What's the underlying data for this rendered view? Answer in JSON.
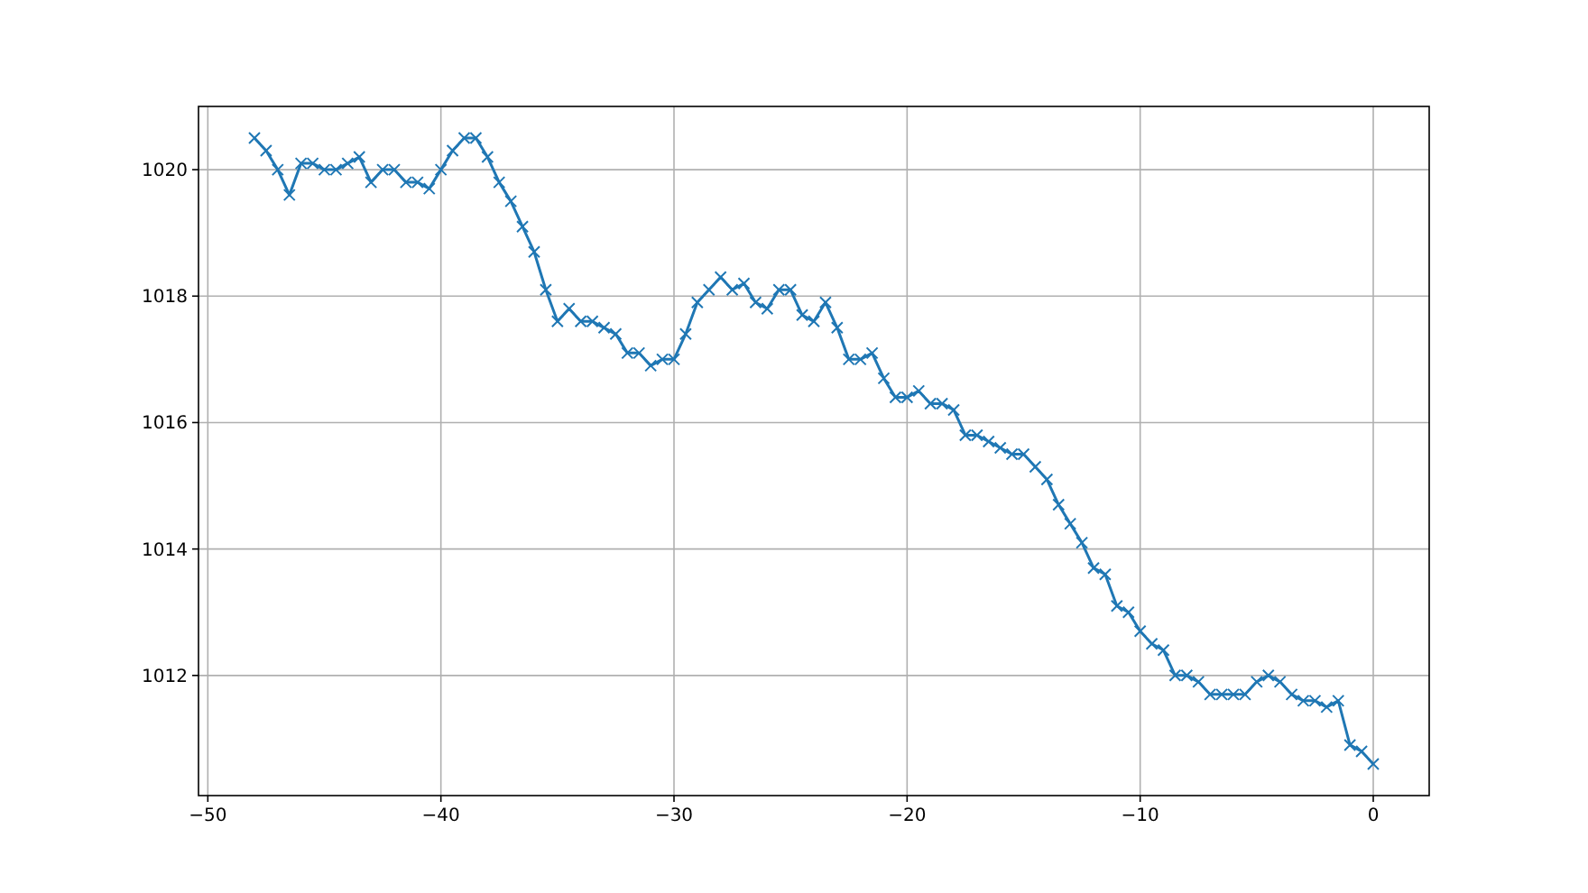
{
  "chart_data": {
    "type": "line",
    "marker": "cross",
    "grid": true,
    "x": [
      -48,
      -47.5,
      -47,
      -46.5,
      -46,
      -45.5,
      -45,
      -44.5,
      -44,
      -43.5,
      -43,
      -42.5,
      -42,
      -41.5,
      -41,
      -40.5,
      -40,
      -39.5,
      -39,
      -38.5,
      -38,
      -37.5,
      -37,
      -36.5,
      -36,
      -35.5,
      -35,
      -34.5,
      -34,
      -33.5,
      -33,
      -32.5,
      -32,
      -31.5,
      -31,
      -30.5,
      -30,
      -29.5,
      -29,
      -28.5,
      -28,
      -27.5,
      -27,
      -26.5,
      -26,
      -25.5,
      -25,
      -24.5,
      -24,
      -23.5,
      -23,
      -22.5,
      -22,
      -21.5,
      -21,
      -20.5,
      -20,
      -19.5,
      -19,
      -18.5,
      -18,
      -17.5,
      -17,
      -16.5,
      -16,
      -15.5,
      -15,
      -14.5,
      -14,
      -13.5,
      -13,
      -12.5,
      -12,
      -11.5,
      -11,
      -10.5,
      -10,
      -9.5,
      -9,
      -8.5,
      -8,
      -7.5,
      -7,
      -6.5,
      -6,
      -5.5,
      -5,
      -4.5,
      -4,
      -3.5,
      -3,
      -2.5,
      -2,
      -1.5,
      -1,
      -0.5,
      0
    ],
    "series": [
      {
        "color": "#1f77b4",
        "values": [
          1020.5,
          1020.3,
          1020.0,
          1019.6,
          1020.1,
          1020.1,
          1020.0,
          1020.0,
          1020.1,
          1020.2,
          1019.8,
          1020.0,
          1020.0,
          1019.8,
          1019.8,
          1019.7,
          1020.0,
          1020.3,
          1020.5,
          1020.5,
          1020.2,
          1019.8,
          1019.5,
          1019.1,
          1018.7,
          1018.1,
          1017.6,
          1017.8,
          1017.6,
          1017.6,
          1017.5,
          1017.4,
          1017.1,
          1017.1,
          1016.9,
          1017.0,
          1017.0,
          1017.4,
          1017.9,
          1018.1,
          1018.3,
          1018.1,
          1018.2,
          1017.9,
          1017.8,
          1018.1,
          1018.1,
          1017.7,
          1017.6,
          1017.9,
          1017.5,
          1017.0,
          1017.0,
          1017.1,
          1016.7,
          1016.4,
          1016.4,
          1016.5,
          1016.3,
          1016.3,
          1016.2,
          1015.8,
          1015.8,
          1015.7,
          1015.6,
          1015.5,
          1015.5,
          1015.3,
          1015.1,
          1014.7,
          1014.4,
          1014.1,
          1013.7,
          1013.6,
          1013.1,
          1013.0,
          1012.7,
          1012.5,
          1012.4,
          1012.0,
          1012.0,
          1011.9,
          1011.7,
          1011.7,
          1011.7,
          1011.7,
          1011.9,
          1012.0,
          1011.9,
          1011.7,
          1011.6,
          1011.6,
          1011.5,
          1011.6,
          1010.9,
          1010.8,
          1010.6
        ]
      }
    ],
    "xlim": [
      -50.4,
      2.4
    ],
    "xticks": [
      -50,
      -40,
      -30,
      -20,
      -10,
      0
    ],
    "ylim": [
      1010.1,
      1021.0
    ],
    "yticks": [
      1012,
      1014,
      1016,
      1018,
      1020
    ]
  }
}
